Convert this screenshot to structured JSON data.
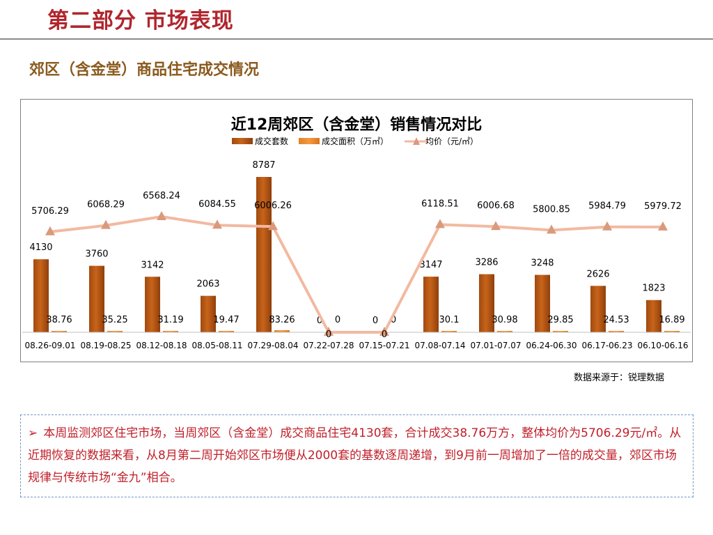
{
  "header": {
    "title": "第二部分 市场表现"
  },
  "section": {
    "title": "郊区（含金堂）商品住宅成交情况"
  },
  "source": "数据来源于：锐理数据",
  "note": {
    "bullet": "➢",
    "text": "本周监测郊区住宅市场，当周郊区（含金堂）成交商品住宅4130套，合计成交38.76万方，整体均价为5706.29元/㎡。从近期恢复的数据来看，从8月第二周开始郊区市场便从2000套的基数逐周递增，到9月前一周增加了一倍的成交量，郊区市场规律与传统市场“金九”相合。"
  },
  "colors": {
    "units_bar": "#c8641a",
    "area_bar": "#f39a3d",
    "price_line": "#f2b9a0",
    "price_marker": "#d99a7c"
  },
  "chart_data": {
    "type": "bar",
    "title": "近12周郊区（含金堂）销售情况对比",
    "categories": [
      "08.26-09.01",
      "08.19-08.25",
      "08.12-08.18",
      "08.05-08.11",
      "07.29-08.04",
      "07.22-07.28",
      "07.15-07.21",
      "07.08-07.14",
      "07.01-07.07",
      "06.24-06.30",
      "06.17-06.23",
      "06.10-06.16"
    ],
    "series": [
      {
        "name": "成交套数",
        "type": "bar",
        "values": [
          4130,
          3760,
          3142,
          2063,
          8787,
          0,
          0,
          3147,
          3286,
          3248,
          2626,
          1823
        ]
      },
      {
        "name": "成交面积（万㎡）",
        "type": "bar",
        "values": [
          38.76,
          35.25,
          31.19,
          19.47,
          83.26,
          0,
          0,
          30.1,
          30.98,
          29.85,
          24.53,
          16.89
        ]
      },
      {
        "name": "均价（元/㎡）",
        "type": "line",
        "values": [
          5706.29,
          6068.29,
          6568.24,
          6084.55,
          6006.26,
          0,
          0,
          6118.51,
          6006.68,
          5800.85,
          5984.79,
          5979.72
        ]
      }
    ],
    "legend": "top",
    "grid": false
  }
}
